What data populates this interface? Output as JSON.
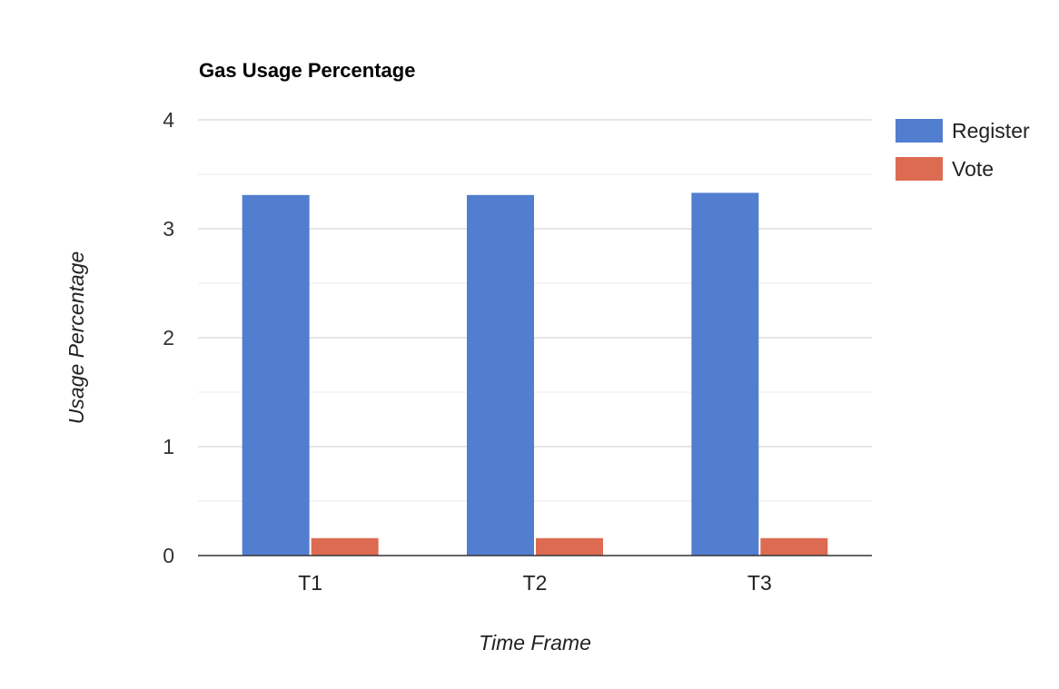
{
  "chart_data": {
    "type": "bar",
    "title": "Gas Usage Percentage",
    "xlabel": "Time Frame",
    "ylabel": "Usage Percentage",
    "categories": [
      "T1",
      "T2",
      "T3"
    ],
    "series": [
      {
        "name": "Register",
        "color": "#527ecf",
        "values": [
          3.31,
          3.31,
          3.33
        ]
      },
      {
        "name": "Vote",
        "color": "#dc6b52",
        "values": [
          0.16,
          0.16,
          0.16
        ]
      }
    ],
    "ylim": [
      0,
      4
    ],
    "yticks": [
      "0",
      "1",
      "2",
      "3",
      "4"
    ],
    "grid": true,
    "legend_position": "right"
  }
}
